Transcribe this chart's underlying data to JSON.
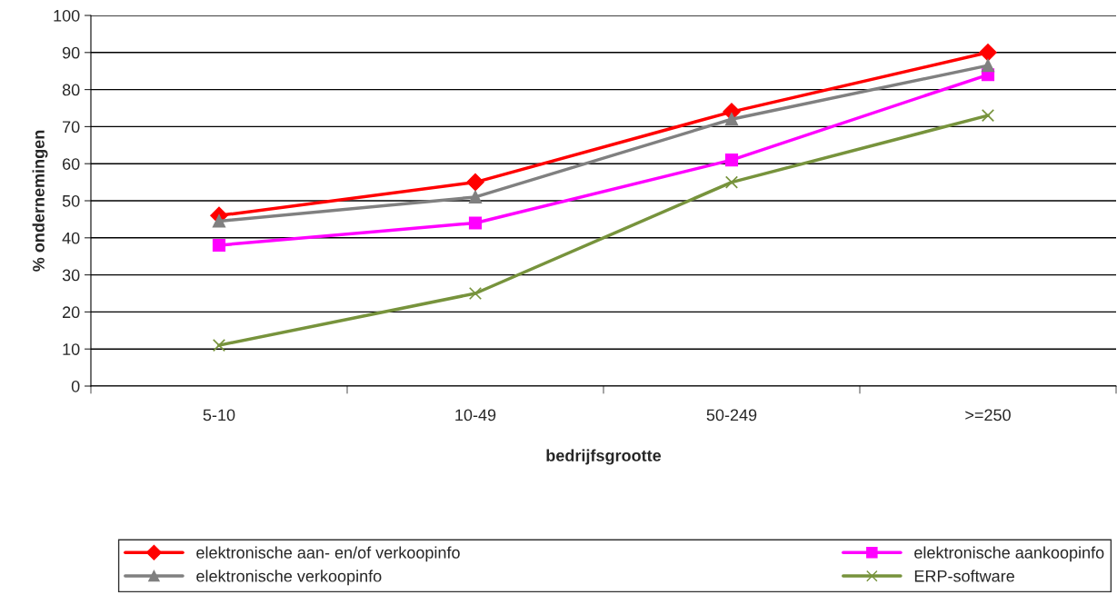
{
  "chart_data": {
    "type": "line",
    "xlabel": "bedrijfsgrootte",
    "ylabel": "% ondernemingen",
    "categories": [
      "5-10",
      "10-49",
      "50-249",
      ">=250"
    ],
    "series": [
      {
        "name": "elektronische aan- en/of verkoopinfo",
        "color": "#ff0000",
        "marker": "diamond",
        "values": [
          46,
          55,
          74,
          90
        ]
      },
      {
        "name": "elektronische aankoopinfo",
        "color": "#ff00ff",
        "marker": "square",
        "values": [
          38,
          44,
          61,
          84
        ]
      },
      {
        "name": "elektronische verkoopinfo",
        "color": "#808080",
        "marker": "triangle",
        "values": [
          44.5,
          51,
          72,
          86.5
        ]
      },
      {
        "name": "ERP-software",
        "color": "#77933c",
        "marker": "cross",
        "values": [
          11,
          25,
          55,
          73
        ]
      }
    ],
    "ylim": [
      0,
      100
    ],
    "yticks": [
      0,
      10,
      20,
      30,
      40,
      50,
      60,
      70,
      80,
      90,
      100
    ],
    "grid": "y",
    "legend": "bottom"
  }
}
